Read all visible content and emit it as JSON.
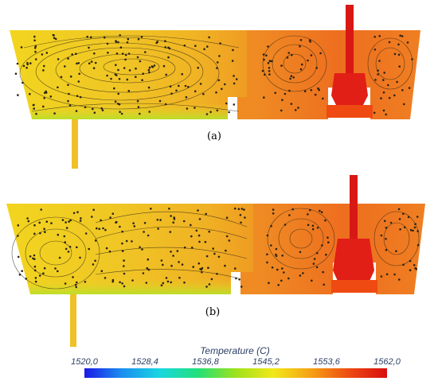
{
  "panels": [
    {
      "label": "(a)"
    },
    {
      "label": "(b)"
    }
  ],
  "colorbar": {
    "title": "Temperature (C)",
    "ticks": [
      "1520,0",
      "1528,4",
      "1536,8",
      "1545,2",
      "1553,6",
      "1562,0"
    ],
    "min": 1520.0,
    "max": 1562.0,
    "colors": [
      "#1a1ae6",
      "#1a8ff0",
      "#19d7e0",
      "#22e07a",
      "#9ee21c",
      "#f2e81a",
      "#f5a014",
      "#ee4a12",
      "#d80e0e"
    ]
  },
  "field_colors": {
    "cool_zone": "#f2cf23",
    "mid_zone": "#f0b021",
    "hot_zone": "#ee6e1f",
    "inlet": "#e11f16",
    "shroud": "#d71815",
    "bottom_edge": "#b8e02a",
    "streamline": "#2b2416"
  }
}
